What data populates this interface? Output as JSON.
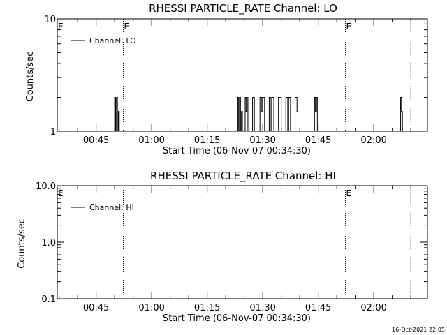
{
  "footer": {
    "timestamp": "16-Oct-2021 22:05"
  },
  "chart_data": [
    {
      "type": "line",
      "title": "RHESSI PARTICLE_RATE Channel: LO",
      "xlabel": "Start Time (06-Nov-07 00:34:30)",
      "ylabel": "Counts/sec",
      "yscale": "log",
      "ylim": [
        1,
        10
      ],
      "ytick_labels": [
        "1",
        "10"
      ],
      "xlim": [
        "00:34:30",
        "02:14:30"
      ],
      "xtick_labels": [
        "00:45",
        "01:00",
        "01:15",
        "01:30",
        "01:45",
        "02:00"
      ],
      "legend": {
        "position": "top-left",
        "entries": [
          "Channel: LO"
        ]
      },
      "event_lines": [
        {
          "time": "00:52:20",
          "label": "E"
        },
        {
          "time": "01:52:20",
          "label": "E"
        },
        {
          "time": "02:10:00",
          "label": ""
        }
      ],
      "edge_label": "E",
      "grid": false,
      "series": [
        {
          "name": "Channel: LO",
          "x": [
            "00:49:45",
            "00:50:00",
            "00:50:15",
            "00:50:30",
            "00:50:45",
            "00:51:00",
            "00:51:15",
            "01:23:00",
            "01:23:15",
            "01:23:30",
            "01:23:45",
            "01:24:00",
            "01:24:15",
            "01:24:30",
            "01:25:00",
            "01:25:15",
            "01:25:30",
            "01:25:45",
            "01:26:00",
            "01:27:00",
            "01:27:15",
            "01:27:30",
            "01:27:45",
            "01:28:00",
            "01:29:00",
            "01:29:15",
            "01:29:30",
            "01:29:45",
            "01:30:00",
            "01:30:15",
            "01:30:30",
            "01:31:30",
            "01:31:45",
            "01:32:00",
            "01:32:15",
            "01:32:30",
            "01:32:45",
            "01:33:00",
            "01:34:00",
            "01:34:15",
            "01:34:30",
            "01:34:45",
            "01:35:00",
            "01:36:00",
            "01:36:15",
            "01:36:30",
            "01:36:45",
            "01:37:00",
            "01:37:15",
            "01:37:30",
            "01:38:30",
            "01:38:45",
            "01:39:00",
            "01:39:15",
            "01:39:30",
            "01:43:45",
            "01:44:00",
            "01:44:15",
            "01:44:30",
            "01:44:45",
            "02:07:00",
            "02:07:15",
            "02:07:30",
            "02:07:45",
            "02:08:00"
          ],
          "y": [
            1,
            2,
            1,
            2,
            1,
            1.5,
            1,
            1,
            2,
            1,
            2,
            1,
            1.5,
            1,
            1,
            2,
            1.5,
            2,
            1,
            1,
            2,
            2,
            1,
            1,
            1,
            2,
            2,
            1.5,
            2,
            2,
            1,
            1,
            2,
            2,
            1,
            2,
            2,
            1,
            1,
            2,
            2,
            2,
            1,
            1,
            2,
            2,
            1,
            2,
            2,
            1,
            1,
            2,
            2,
            1.5,
            1,
            1,
            2,
            1.5,
            2,
            1,
            1,
            2,
            1.5,
            1,
            1
          ]
        }
      ]
    },
    {
      "type": "line",
      "title": "RHESSI PARTICLE_RATE Channel: HI",
      "xlabel": "Start Time (06-Nov-07 00:34:30)",
      "ylabel": "Counts/sec",
      "yscale": "log",
      "ylim": [
        0.1,
        10
      ],
      "ytick_labels": [
        "0.1",
        "1.0",
        "10.0"
      ],
      "xlim": [
        "00:34:30",
        "02:14:30"
      ],
      "xtick_labels": [
        "00:45",
        "01:00",
        "01:15",
        "01:30",
        "01:45",
        "02:00"
      ],
      "legend": {
        "position": "top-left",
        "entries": [
          "Channel: HI"
        ]
      },
      "event_lines": [
        {
          "time": "00:52:20",
          "label": ""
        },
        {
          "time": "01:52:20",
          "label": "E"
        },
        {
          "time": "02:10:00",
          "label": ""
        }
      ],
      "edge_label": "E",
      "grid": false,
      "series": [
        {
          "name": "Channel: HI",
          "x": [],
          "y": []
        }
      ]
    }
  ]
}
